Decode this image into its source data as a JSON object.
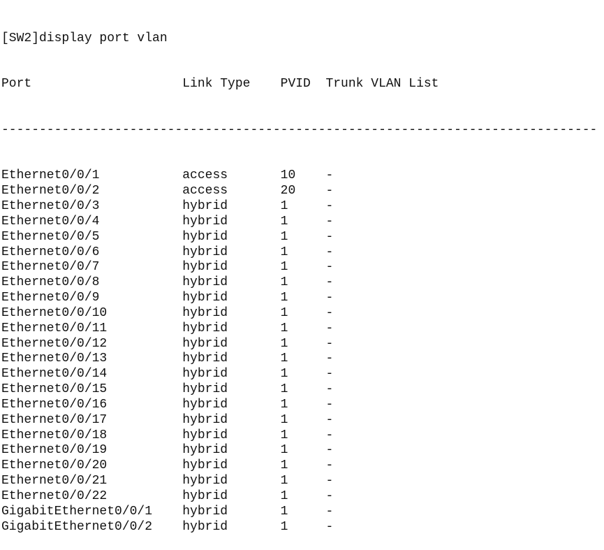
{
  "command": "[SW2]display port vlan",
  "headers": [
    "Port",
    "Link Type",
    "PVID",
    "Trunk VLAN List"
  ],
  "separator": "-------------------------------------------------------------------------------",
  "rows": [
    [
      "Ethernet0/0/1",
      "access",
      "10",
      "-"
    ],
    [
      "Ethernet0/0/2",
      "access",
      "20",
      "-"
    ],
    [
      "Ethernet0/0/3",
      "hybrid",
      "1",
      "-"
    ],
    [
      "Ethernet0/0/4",
      "hybrid",
      "1",
      "-"
    ],
    [
      "Ethernet0/0/5",
      "hybrid",
      "1",
      "-"
    ],
    [
      "Ethernet0/0/6",
      "hybrid",
      "1",
      "-"
    ],
    [
      "Ethernet0/0/7",
      "hybrid",
      "1",
      "-"
    ],
    [
      "Ethernet0/0/8",
      "hybrid",
      "1",
      "-"
    ],
    [
      "Ethernet0/0/9",
      "hybrid",
      "1",
      "-"
    ],
    [
      "Ethernet0/0/10",
      "hybrid",
      "1",
      "-"
    ],
    [
      "Ethernet0/0/11",
      "hybrid",
      "1",
      "-"
    ],
    [
      "Ethernet0/0/12",
      "hybrid",
      "1",
      "-"
    ],
    [
      "Ethernet0/0/13",
      "hybrid",
      "1",
      "-"
    ],
    [
      "Ethernet0/0/14",
      "hybrid",
      "1",
      "-"
    ],
    [
      "Ethernet0/0/15",
      "hybrid",
      "1",
      "-"
    ],
    [
      "Ethernet0/0/16",
      "hybrid",
      "1",
      "-"
    ],
    [
      "Ethernet0/0/17",
      "hybrid",
      "1",
      "-"
    ],
    [
      "Ethernet0/0/18",
      "hybrid",
      "1",
      "-"
    ],
    [
      "Ethernet0/0/19",
      "hybrid",
      "1",
      "-"
    ],
    [
      "Ethernet0/0/20",
      "hybrid",
      "1",
      "-"
    ],
    [
      "Ethernet0/0/21",
      "hybrid",
      "1",
      "-"
    ],
    [
      "Ethernet0/0/22",
      "hybrid",
      "1",
      "-"
    ],
    [
      "GigabitEthernet0/0/1",
      "hybrid",
      "1",
      "-"
    ],
    [
      "GigabitEthernet0/0/2",
      "hybrid",
      "1",
      "-"
    ]
  ]
}
